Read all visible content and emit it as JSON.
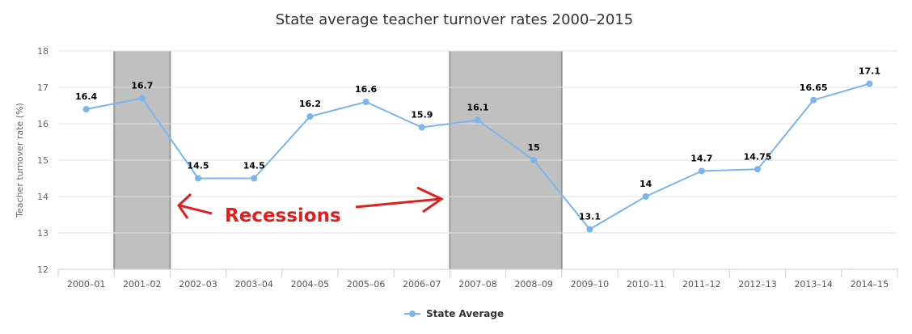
{
  "chart_data": {
    "type": "line",
    "title": "State average teacher turnover rates 2000–2015",
    "ylabel": "Teacher turnover rate (%)",
    "xlabel": "",
    "ylim": [
      12,
      18
    ],
    "yticks": [
      12,
      13,
      14,
      15,
      16,
      17,
      18
    ],
    "grid": true,
    "legend_position": "bottom-center",
    "categories": [
      "2000–01",
      "2001–02",
      "2002–03",
      "2003–04",
      "2004–05",
      "2005–06",
      "2006–07",
      "2007–08",
      "2008–09",
      "2009–10",
      "2010–11",
      "2011–12",
      "2012–13",
      "2013–14",
      "2014–15"
    ],
    "series": [
      {
        "name": "State Average",
        "color": "#7cb5ec",
        "values": [
          16.4,
          16.7,
          14.5,
          14.5,
          16.2,
          16.6,
          15.9,
          16.1,
          15,
          13.1,
          14,
          14.7,
          14.75,
          16.65,
          17.1
        ],
        "labels": [
          "16.4",
          "16.7",
          "14.5",
          "14.5",
          "16.2",
          "16.6",
          "15.9",
          "16.1",
          "15",
          "13.1",
          "14",
          "14.7",
          "14.75",
          "16.65",
          "17.1"
        ]
      }
    ],
    "shaded_bands": [
      {
        "from_index": 1,
        "to_index": 1,
        "color": "#c0c0c0"
      },
      {
        "from_index": 7,
        "to_index": 8,
        "color": "#c0c0c0"
      }
    ],
    "annotation": {
      "text": "Recessions",
      "color": "#e02020"
    }
  }
}
